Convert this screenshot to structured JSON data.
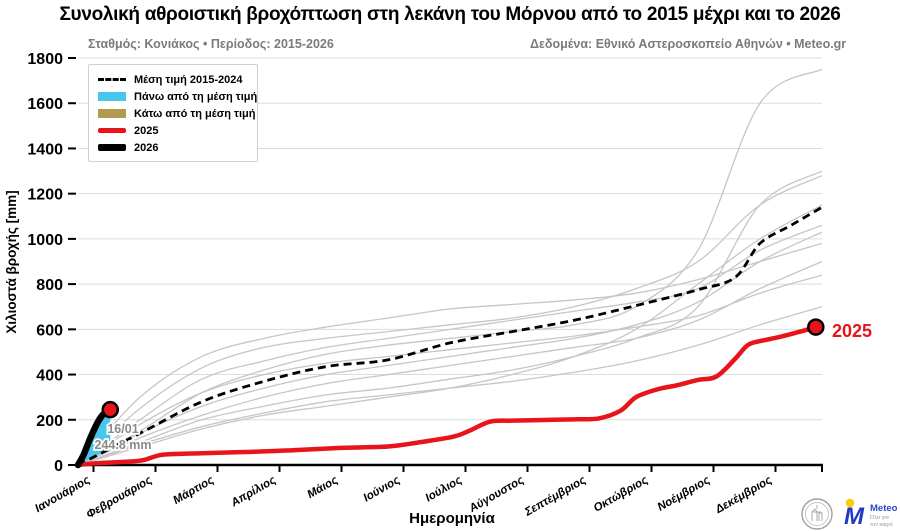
{
  "header": {
    "title": "Συνολική αθροιστική βροχόπτωση στη λεκάνη του Μόρνου από το 2015 μέχρι και το 2026",
    "station_line": "Σταθμός: Κονιάκος • Περίοδος: 2015-2026",
    "source_line": "Δεδομένα: Εθνικό Αστεροσκοπείο Αθηνών • Meteo.gr"
  },
  "legend": {
    "items": [
      {
        "label": "Μέση τιμή 2015-2024",
        "swatch": "dashed-black-line"
      },
      {
        "label": "Πάνω από τη μέση τιμή",
        "swatch": "cyan-patch"
      },
      {
        "label": "Κάτω από τη μέση τιμή",
        "swatch": "tan-patch"
      },
      {
        "label": "2025",
        "swatch": "red-line"
      },
      {
        "label": "2026",
        "swatch": "black-line"
      }
    ]
  },
  "axes": {
    "x_label": "Ημερομηνία",
    "y_label": "Χιλιοστά βροχής [mm]"
  },
  "annotations": {
    "date": "16/01",
    "value": "244.8 mm",
    "end_label": "2025"
  },
  "footer": {
    "meteo_m": "M",
    "meteo_name": "Meteo",
    "tagline1": "Όλα για",
    "tagline2": "τον καιρό"
  },
  "chart_data": {
    "type": "line",
    "title": "Συνολική αθροιστική βροχόπτωση στη λεκάνη του Μόρνου από το 2015 μέχρι και το 2026",
    "xlabel": "Ημερομηνία",
    "ylabel": "Χιλιοστά βροχής [mm]",
    "ylim": [
      0,
      1800
    ],
    "y_ticks": [
      0,
      200,
      400,
      600,
      800,
      1000,
      1200,
      1400,
      1600,
      1800
    ],
    "x_unit": "month_index_0_to_12_Jan1_to_Dec31",
    "x_months": [
      "Ιανουάριος",
      "Φεβρουάριος",
      "Μάρτιος",
      "Απρίλιος",
      "Μάιος",
      "Ιούνιος",
      "Ιούλιος",
      "Αύγουστος",
      "Σεπτέμβριος",
      "Οκτώβριος",
      "Νοέμβριος",
      "Δεκέμβριος"
    ],
    "grid": true,
    "legend_position": "upper-left",
    "colors": {
      "accent_red": "#e8141b",
      "above_mean_cyan": "#49c6ed",
      "below_mean_tan": "#b49a4e",
      "background_gray": "#c6c6c6",
      "mean_black": "#000000",
      "grid_gray": "#dcdcdc",
      "meteo_blue": "#2038c8",
      "meteo_yellow": "#ffc90b"
    },
    "series": [
      {
        "name": "Μέση τιμή 2015-2024",
        "role": "mean",
        "style": "dashed",
        "x": [
          0,
          1,
          2,
          3,
          4,
          5,
          6,
          7,
          8,
          9,
          10,
          10.6,
          11,
          11.5,
          12
        ],
        "values": [
          0,
          140,
          280,
          370,
          435,
          465,
          540,
          590,
          640,
          705,
          775,
          830,
          980,
          1060,
          1140
        ]
      },
      {
        "name": "2025",
        "role": "year-2025",
        "style": "thick-red",
        "x": [
          0,
          0.3,
          1,
          1.35,
          2,
          3,
          3.5,
          4.2,
          5,
          5.5,
          6.05,
          6.3,
          6.65,
          7,
          7.5,
          8,
          8.4,
          8.75,
          9.0,
          9.35,
          9.65,
          10,
          10.3,
          10.6,
          10.8,
          11,
          11.3,
          11.65,
          11.9
        ],
        "values": [
          0,
          8,
          19,
          45,
          52,
          60,
          66,
          75,
          82,
          100,
          125,
          150,
          192,
          196,
          199,
          202,
          206,
          240,
          300,
          335,
          352,
          376,
          392,
          470,
          530,
          548,
          565,
          590,
          610
        ]
      },
      {
        "name": "2026",
        "role": "year-2026",
        "style": "thick-black",
        "x": [
          0,
          0.09,
          0.2,
          0.32,
          0.42,
          0.52
        ],
        "values": [
          0,
          45,
          120,
          190,
          228,
          244.8
        ]
      }
    ],
    "background_series": [
      {
        "name": "year-a",
        "values": [
          0,
          150,
          320,
          420,
          490,
          530,
          560,
          590,
          620,
          700,
          950,
          1600,
          1750
        ]
      },
      {
        "name": "year-b",
        "values": [
          0,
          100,
          200,
          260,
          310,
          340,
          380,
          420,
          480,
          560,
          700,
          1150,
          1300
        ]
      },
      {
        "name": "year-c",
        "values": [
          0,
          250,
          430,
          520,
          560,
          590,
          620,
          650,
          700,
          780,
          900,
          1150,
          1280
        ]
      },
      {
        "name": "year-d",
        "values": [
          0,
          80,
          160,
          220,
          260,
          300,
          340,
          400,
          480,
          600,
          800,
          1000,
          1150
        ]
      },
      {
        "name": "year-e",
        "values": [
          0,
          200,
          380,
          460,
          520,
          560,
          600,
          640,
          680,
          720,
          780,
          950,
          1060
        ]
      },
      {
        "name": "year-f",
        "values": [
          0,
          140,
          260,
          340,
          400,
          440,
          480,
          520,
          560,
          620,
          720,
          900,
          1030
        ]
      },
      {
        "name": "year-g",
        "values": [
          0,
          300,
          480,
          560,
          610,
          650,
          690,
          710,
          730,
          760,
          820,
          900,
          980
        ]
      },
      {
        "name": "year-h",
        "values": [
          0,
          120,
          220,
          300,
          360,
          400,
          440,
          480,
          520,
          560,
          640,
          780,
          900
        ]
      },
      {
        "name": "year-i",
        "values": [
          0,
          180,
          320,
          400,
          450,
          480,
          510,
          540,
          570,
          610,
          660,
          760,
          840
        ]
      },
      {
        "name": "year-j",
        "values": [
          0,
          90,
          170,
          230,
          280,
          310,
          340,
          370,
          410,
          460,
          530,
          620,
          700
        ]
      }
    ],
    "fill_above_mean": {
      "x": [
        0,
        0.13,
        0.26,
        0.39,
        0.52
      ],
      "upper": [
        0,
        58,
        135,
        205,
        244.8
      ],
      "lower": [
        0,
        18,
        36,
        55,
        73
      ]
    },
    "markers": [
      {
        "x": 0.52,
        "value": 244.8,
        "label": "16/01 244.8 mm",
        "series": "2026"
      },
      {
        "x": 11.9,
        "value": 610,
        "label": "2025",
        "series": "2025"
      }
    ]
  }
}
